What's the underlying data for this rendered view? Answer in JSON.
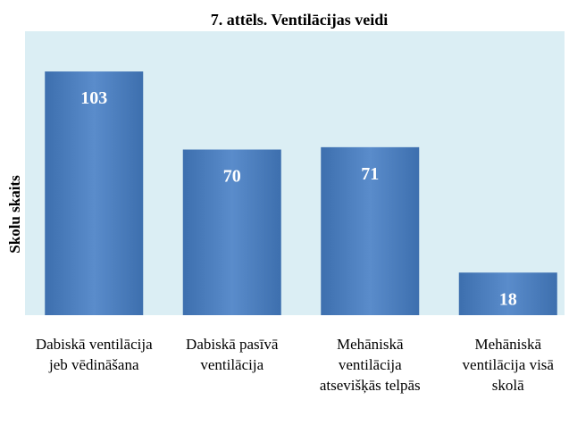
{
  "chart_data": {
    "type": "bar",
    "title": "7. attēls. Ventilācijas veidi",
    "ylabel": "Skolu skaits",
    "categories": [
      "Dabiskā ventilācija jeb vēdināšana",
      "Dabiskā pasīvā ventilācija",
      "Mehāniskā ventilācija atsevišķās telpās",
      "Mehāniskā ventilācija visā skolā"
    ],
    "values": [
      103,
      70,
      71,
      18
    ],
    "color": "#4f81bd",
    "ylim": [
      0,
      120
    ]
  }
}
